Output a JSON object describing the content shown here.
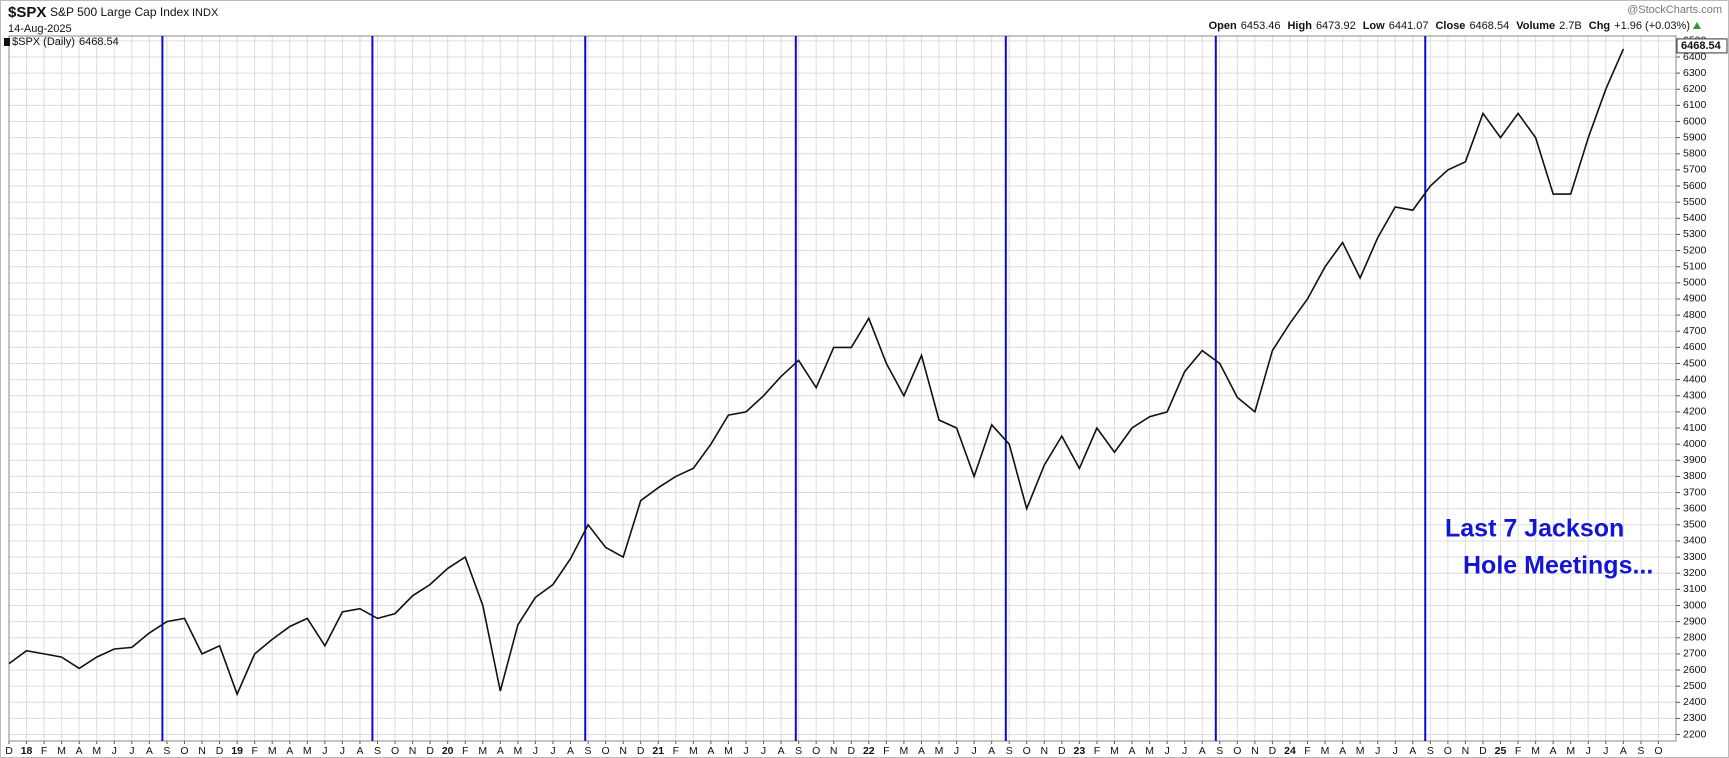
{
  "header": {
    "symbol": "$SPX",
    "name": "S&P 500 Large Cap Index",
    "exchange": "INDX",
    "date": "14-Aug-2025",
    "source": "@StockCharts.com",
    "quote": [
      {
        "label": "Open",
        "value": 6453.46
      },
      {
        "label": "High",
        "value": 6473.92
      },
      {
        "label": "Low",
        "value": 6441.07
      },
      {
        "label": "Close",
        "value": 6468.54
      },
      {
        "label": "Volume",
        "value": "2.7B"
      },
      {
        "label": "Chg",
        "value": "+1.96 (+0.03%)"
      }
    ]
  },
  "chart_data": {
    "type": "line",
    "last_price": 6468.54,
    "grid": true,
    "event_color": "#0a0ad8",
    "annotation": [
      "Last 7 Jackson",
      "Hole Meetings..."
    ],
    "events": [
      "2018-08-24",
      "2019-08-23",
      "2020-08-27",
      "2021-08-27",
      "2022-08-26",
      "2023-08-25",
      "2024-08-23"
    ],
    "x": [
      "2017-12",
      "2018-01",
      "2018-02",
      "2018-03",
      "2018-04",
      "2018-05",
      "2018-06",
      "2018-07",
      "2018-08",
      "2018-09",
      "2018-10",
      "2018-11",
      "2018-12",
      "2019-01",
      "2019-02",
      "2019-03",
      "2019-04",
      "2019-05",
      "2019-06",
      "2019-07",
      "2019-08",
      "2019-09",
      "2019-10",
      "2019-11",
      "2019-12",
      "2020-01",
      "2020-02",
      "2020-03",
      "2020-04",
      "2020-05",
      "2020-06",
      "2020-07",
      "2020-08",
      "2020-09",
      "2020-10",
      "2020-11",
      "2020-12",
      "2021-01",
      "2021-02",
      "2021-03",
      "2021-04",
      "2021-05",
      "2021-06",
      "2021-07",
      "2021-08",
      "2021-09",
      "2021-10",
      "2021-11",
      "2021-12",
      "2022-01",
      "2022-02",
      "2022-03",
      "2022-04",
      "2022-05",
      "2022-06",
      "2022-07",
      "2022-08",
      "2022-09",
      "2022-10",
      "2022-11",
      "2022-12",
      "2023-01",
      "2023-02",
      "2023-03",
      "2023-04",
      "2023-05",
      "2023-06",
      "2023-07",
      "2023-08",
      "2023-09",
      "2023-10",
      "2023-11",
      "2023-12",
      "2024-01",
      "2024-02",
      "2024-03",
      "2024-04",
      "2024-05",
      "2024-06",
      "2024-07",
      "2024-08",
      "2024-09",
      "2024-10",
      "2024-11",
      "2024-12",
      "2025-01",
      "2025-02",
      "2025-03",
      "2025-04",
      "2025-05",
      "2025-06",
      "2025-07",
      "2025-08"
    ],
    "series": [
      {
        "name": "$SPX (Daily)",
        "color": "#111111",
        "values": [
          2640,
          2720,
          2700,
          2680,
          2610,
          2680,
          2730,
          2740,
          2830,
          2900,
          2920,
          2700,
          2750,
          2450,
          2700,
          2790,
          2870,
          2920,
          2750,
          2960,
          2980,
          2920,
          2950,
          3060,
          3130,
          3230,
          3300,
          3000,
          2470,
          2880,
          3050,
          3130,
          3290,
          3500,
          3360,
          3300,
          3650,
          3730,
          3800,
          3850,
          4000,
          4180,
          4200,
          4300,
          4420,
          4520,
          4350,
          4600,
          4600,
          4780,
          4500,
          4300,
          4550,
          4150,
          4100,
          3800,
          4120,
          4000,
          3600,
          3870,
          4050,
          3850,
          4100,
          3950,
          4100,
          4170,
          4200,
          4450,
          4580,
          4500,
          4290,
          4200,
          4580,
          4750,
          4900,
          5100,
          5250,
          5030,
          5280,
          5470,
          5450,
          5600,
          5700,
          5750,
          6050,
          5900,
          6050,
          5900,
          5550,
          5550,
          5900,
          6200,
          6450
        ]
      }
    ],
    "xlim": [
      "2017-12",
      "2025-11"
    ],
    "xticks": [
      {
        "value": "2017-12",
        "label": "D"
      },
      {
        "value": "2018-01",
        "label": "18"
      },
      {
        "value": "2018-02",
        "label": "F"
      },
      {
        "value": "2018-03",
        "label": "M"
      },
      {
        "value": "2018-04",
        "label": "A"
      },
      {
        "value": "2018-05",
        "label": "M"
      },
      {
        "value": "2018-06",
        "label": "J"
      },
      {
        "value": "2018-07",
        "label": "J"
      },
      {
        "value": "2018-08",
        "label": "A"
      },
      {
        "value": "2018-09",
        "label": "S"
      },
      {
        "value": "2018-10",
        "label": "O"
      },
      {
        "value": "2018-11",
        "label": "N"
      },
      {
        "value": "2018-12",
        "label": "D"
      },
      {
        "value": "2019-01",
        "label": "19"
      },
      {
        "value": "2019-02",
        "label": "F"
      },
      {
        "value": "2019-03",
        "label": "M"
      },
      {
        "value": "2019-04",
        "label": "A"
      },
      {
        "value": "2019-05",
        "label": "M"
      },
      {
        "value": "2019-06",
        "label": "J"
      },
      {
        "value": "2019-07",
        "label": "J"
      },
      {
        "value": "2019-08",
        "label": "A"
      },
      {
        "value": "2019-09",
        "label": "S"
      },
      {
        "value": "2019-10",
        "label": "O"
      },
      {
        "value": "2019-11",
        "label": "N"
      },
      {
        "value": "2019-12",
        "label": "D"
      },
      {
        "value": "2020-01",
        "label": "20"
      },
      {
        "value": "2020-02",
        "label": "F"
      },
      {
        "value": "2020-03",
        "label": "M"
      },
      {
        "value": "2020-04",
        "label": "A"
      },
      {
        "value": "2020-05",
        "label": "M"
      },
      {
        "value": "2020-06",
        "label": "J"
      },
      {
        "value": "2020-07",
        "label": "J"
      },
      {
        "value": "2020-08",
        "label": "A"
      },
      {
        "value": "2020-09",
        "label": "S"
      },
      {
        "value": "2020-10",
        "label": "O"
      },
      {
        "value": "2020-11",
        "label": "N"
      },
      {
        "value": "2020-12",
        "label": "D"
      },
      {
        "value": "2021-01",
        "label": "21"
      },
      {
        "value": "2021-02",
        "label": "F"
      },
      {
        "value": "2021-03",
        "label": "M"
      },
      {
        "value": "2021-04",
        "label": "A"
      },
      {
        "value": "2021-05",
        "label": "M"
      },
      {
        "value": "2021-06",
        "label": "J"
      },
      {
        "value": "2021-07",
        "label": "J"
      },
      {
        "value": "2021-08",
        "label": "A"
      },
      {
        "value": "2021-09",
        "label": "S"
      },
      {
        "value": "2021-10",
        "label": "O"
      },
      {
        "value": "2021-11",
        "label": "N"
      },
      {
        "value": "2021-12",
        "label": "D"
      },
      {
        "value": "2022-01",
        "label": "22"
      },
      {
        "value": "2022-02",
        "label": "F"
      },
      {
        "value": "2022-03",
        "label": "M"
      },
      {
        "value": "2022-04",
        "label": "A"
      },
      {
        "value": "2022-05",
        "label": "M"
      },
      {
        "value": "2022-06",
        "label": "J"
      },
      {
        "value": "2022-07",
        "label": "J"
      },
      {
        "value": "2022-08",
        "label": "A"
      },
      {
        "value": "2022-09",
        "label": "S"
      },
      {
        "value": "2022-10",
        "label": "O"
      },
      {
        "value": "2022-11",
        "label": "N"
      },
      {
        "value": "2022-12",
        "label": "D"
      },
      {
        "value": "2023-01",
        "label": "23"
      },
      {
        "value": "2023-02",
        "label": "F"
      },
      {
        "value": "2023-03",
        "label": "M"
      },
      {
        "value": "2023-04",
        "label": "A"
      },
      {
        "value": "2023-05",
        "label": "M"
      },
      {
        "value": "2023-06",
        "label": "J"
      },
      {
        "value": "2023-07",
        "label": "J"
      },
      {
        "value": "2023-08",
        "label": "A"
      },
      {
        "value": "2023-09",
        "label": "S"
      },
      {
        "value": "2023-10",
        "label": "O"
      },
      {
        "value": "2023-11",
        "label": "N"
      },
      {
        "value": "2023-12",
        "label": "D"
      },
      {
        "value": "2024-01",
        "label": "24"
      },
      {
        "value": "2024-02",
        "label": "F"
      },
      {
        "value": "2024-03",
        "label": "M"
      },
      {
        "value": "2024-04",
        "label": "A"
      },
      {
        "value": "2024-05",
        "label": "M"
      },
      {
        "value": "2024-06",
        "label": "J"
      },
      {
        "value": "2024-07",
        "label": "J"
      },
      {
        "value": "2024-08",
        "label": "A"
      },
      {
        "value": "2024-09",
        "label": "S"
      },
      {
        "value": "2024-10",
        "label": "O"
      },
      {
        "value": "2024-11",
        "label": "N"
      },
      {
        "value": "2024-12",
        "label": "D"
      },
      {
        "value": "2025-01",
        "label": "25"
      },
      {
        "value": "2025-02",
        "label": "F"
      },
      {
        "value": "2025-03",
        "label": "M"
      },
      {
        "value": "2025-04",
        "label": "A"
      },
      {
        "value": "2025-05",
        "label": "M"
      },
      {
        "value": "2025-06",
        "label": "J"
      },
      {
        "value": "2025-07",
        "label": "J"
      },
      {
        "value": "2025-08",
        "label": "A"
      },
      {
        "value": "2025-09",
        "label": "S"
      },
      {
        "value": "2025-10",
        "label": "O"
      }
    ],
    "ylim": [
      2160,
      6530
    ],
    "yticks": [
      2200,
      2300,
      2400,
      2500,
      2600,
      2700,
      2800,
      2900,
      3000,
      3100,
      3200,
      3300,
      3400,
      3500,
      3600,
      3700,
      3800,
      3900,
      4000,
      4100,
      4200,
      4300,
      4400,
      4500,
      4600,
      4700,
      4800,
      4900,
      5000,
      5100,
      5200,
      5300,
      5400,
      5500,
      5600,
      5700,
      5800,
      5900,
      6000,
      6100,
      6200,
      6300,
      6400,
      6500
    ]
  }
}
